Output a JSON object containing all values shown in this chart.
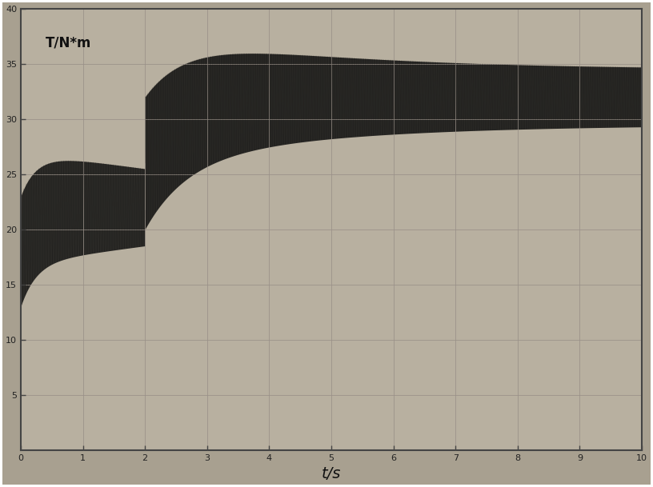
{
  "title": "T/N*m",
  "xlabel": "t/s",
  "xlim": [
    0,
    10
  ],
  "ylim": [
    0,
    40
  ],
  "yticks": [
    5,
    10,
    15,
    20,
    25,
    30,
    35,
    40
  ],
  "xticks": [
    0,
    1,
    2,
    3,
    4,
    5,
    6,
    7,
    8,
    9,
    10
  ],
  "xtick_labels": [
    "0",
    "1",
    "2",
    "3",
    "4",
    "5",
    "6",
    "7",
    "8",
    "9",
    "10"
  ],
  "ytick_labels": [
    "5",
    "10",
    "15",
    "20",
    "25",
    "30",
    "35",
    "40"
  ],
  "bg_color": "#a8a090",
  "plot_bg_color": "#b8b0a0",
  "line_color": "#111111",
  "grid_color": "#999088",
  "phase1_end": 2.0,
  "phase1_mean": 22.0,
  "phase1_amp": 5.0,
  "phase1_freq": 25.0,
  "phase2_start": 2.0,
  "phase2_mean": 32.0,
  "phase2_amp_start": 6.0,
  "phase2_amp_end": 2.5,
  "phase2_freq": 50.0,
  "phase2_decay": 0.35
}
